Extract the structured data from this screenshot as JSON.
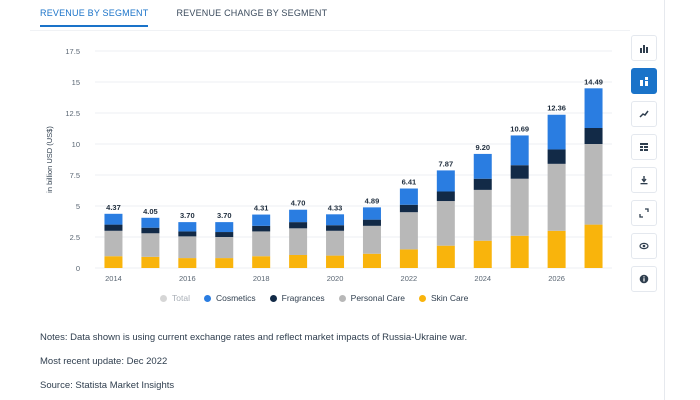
{
  "tabs": [
    {
      "label": "REVENUE BY SEGMENT",
      "active": true
    },
    {
      "label": "REVENUE CHANGE BY SEGMENT",
      "active": false
    }
  ],
  "colors": {
    "cosmetics": "#2a7de1",
    "fragrances": "#122a47",
    "personal_care": "#b8b8b8",
    "skin_care": "#f9b40c",
    "total": "#d6d6d6",
    "accent": "#1a73c9"
  },
  "chart_data": {
    "type": "bar",
    "stacked": true,
    "ylabel": "in billion USD (US$)",
    "ylim": [
      0,
      17.5
    ],
    "yticks": [
      0,
      2.5,
      5,
      7.5,
      10,
      12.5,
      15,
      17.5
    ],
    "ytick_labels": [
      "0",
      "2.5",
      "5",
      "7.5",
      "10",
      "12.5",
      "15",
      "17.5"
    ],
    "categories": [
      "2014",
      "2015",
      "2016",
      "2017",
      "2018",
      "2019",
      "2020",
      "2021",
      "2022",
      "2023",
      "2024",
      "2025",
      "2026",
      "2027"
    ],
    "xtick_labels": [
      "2014",
      "",
      "2016",
      "",
      "2018",
      "",
      "2020",
      "",
      "2022",
      "",
      "2024",
      "",
      "2026",
      ""
    ],
    "totals": [
      4.37,
      4.05,
      3.7,
      3.7,
      4.31,
      4.7,
      4.33,
      4.89,
      6.41,
      7.87,
      9.2,
      10.69,
      12.36,
      14.49
    ],
    "total_labels": [
      "4.37",
      "4.05",
      "3.70",
      "3.70",
      "4.31",
      "4.70",
      "4.33",
      "4.89",
      "6.41",
      "7.87",
      "9.20",
      "10.69",
      "12.36",
      "14.49"
    ],
    "series": [
      {
        "name": "Skin Care",
        "values": [
          0.95,
          0.9,
          0.8,
          0.8,
          0.95,
          1.05,
          1.0,
          1.15,
          1.5,
          1.8,
          2.2,
          2.6,
          3.0,
          3.5
        ]
      },
      {
        "name": "Personal Care",
        "values": [
          2.05,
          1.9,
          1.75,
          1.7,
          2.0,
          2.15,
          2.0,
          2.25,
          3.0,
          3.6,
          4.1,
          4.6,
          5.4,
          6.5
        ]
      },
      {
        "name": "Fragrances",
        "values": [
          0.5,
          0.45,
          0.4,
          0.4,
          0.45,
          0.5,
          0.45,
          0.5,
          0.6,
          0.77,
          0.9,
          1.09,
          1.16,
          1.29
        ]
      },
      {
        "name": "Cosmetics",
        "values": [
          0.87,
          0.8,
          0.75,
          0.8,
          0.91,
          1.0,
          0.88,
          0.99,
          1.31,
          1.7,
          2.0,
          2.4,
          2.8,
          3.2
        ]
      }
    ],
    "legend": [
      {
        "name": "Total",
        "muted": true
      },
      {
        "name": "Cosmetics",
        "muted": false
      },
      {
        "name": "Fragrances",
        "muted": false
      },
      {
        "name": "Personal Care",
        "muted": false
      },
      {
        "name": "Skin Care",
        "muted": false
      }
    ],
    "legend_position": "bottom",
    "grid": true
  },
  "notes": {
    "line1": "Notes: Data shown is using current exchange rates and reflect market impacts of Russia-Ukraine war.",
    "line2": "Most recent update: Dec 2022",
    "line3": "Source: Statista Market Insights"
  },
  "toolbar": [
    {
      "icon": "bar-chart-icon",
      "active": false
    },
    {
      "icon": "stacked-bar-icon",
      "active": true
    },
    {
      "icon": "line-chart-icon",
      "active": false
    },
    {
      "icon": "table-icon",
      "active": false
    },
    {
      "icon": "download-icon",
      "active": false
    },
    {
      "icon": "expand-icon",
      "active": false
    },
    {
      "icon": "eye-icon",
      "active": false
    },
    {
      "icon": "info-icon",
      "active": false
    }
  ]
}
